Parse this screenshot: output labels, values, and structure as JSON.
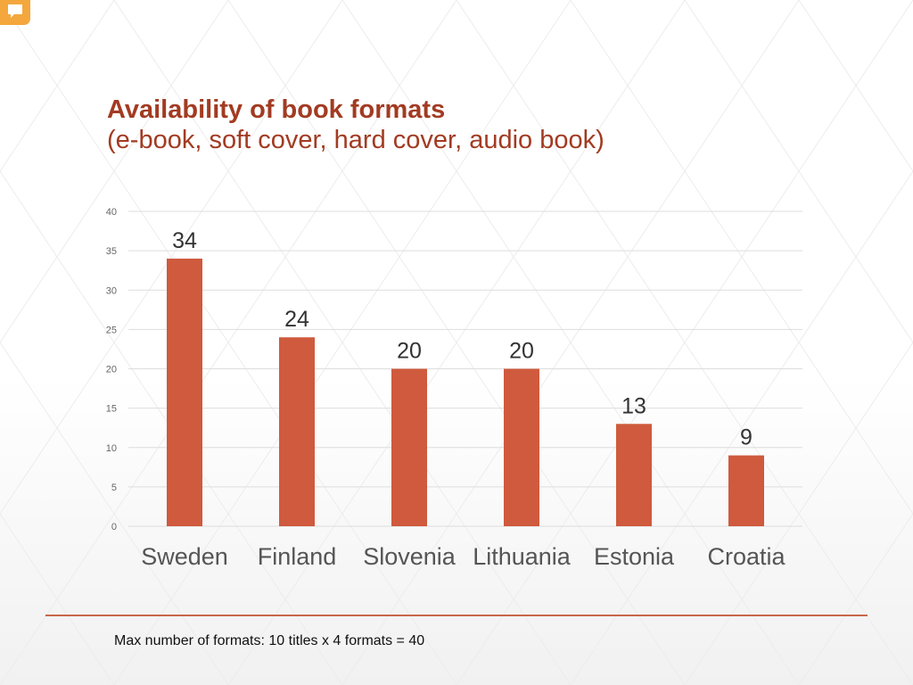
{
  "title": {
    "line1": "Availability of book formats",
    "line2": "(e-book, soft cover, hard cover, audio book)"
  },
  "footnote": "Max number of formats: 10 titles x 4 formats = 40",
  "colors": {
    "bar": "#cf5a3d",
    "title": "#a23b22",
    "grid": "#dddddd",
    "divider": "#c8674a",
    "tick": "#666666",
    "label": "#555555",
    "badge": "#f4a73c"
  },
  "chart_data": {
    "type": "bar",
    "title": "Availability of book formats (e-book, soft cover, hard cover, audio book)",
    "xlabel": "",
    "ylabel": "",
    "categories": [
      "Sweden",
      "Finland",
      "Slovenia",
      "Lithuania",
      "Estonia",
      "Croatia"
    ],
    "values": [
      34,
      24,
      20,
      20,
      13,
      9
    ],
    "ylim": [
      0,
      40
    ],
    "yticks": [
      0,
      5,
      10,
      15,
      20,
      25,
      30,
      35,
      40
    ],
    "grid": true,
    "data_labels": true,
    "legend": "none"
  }
}
